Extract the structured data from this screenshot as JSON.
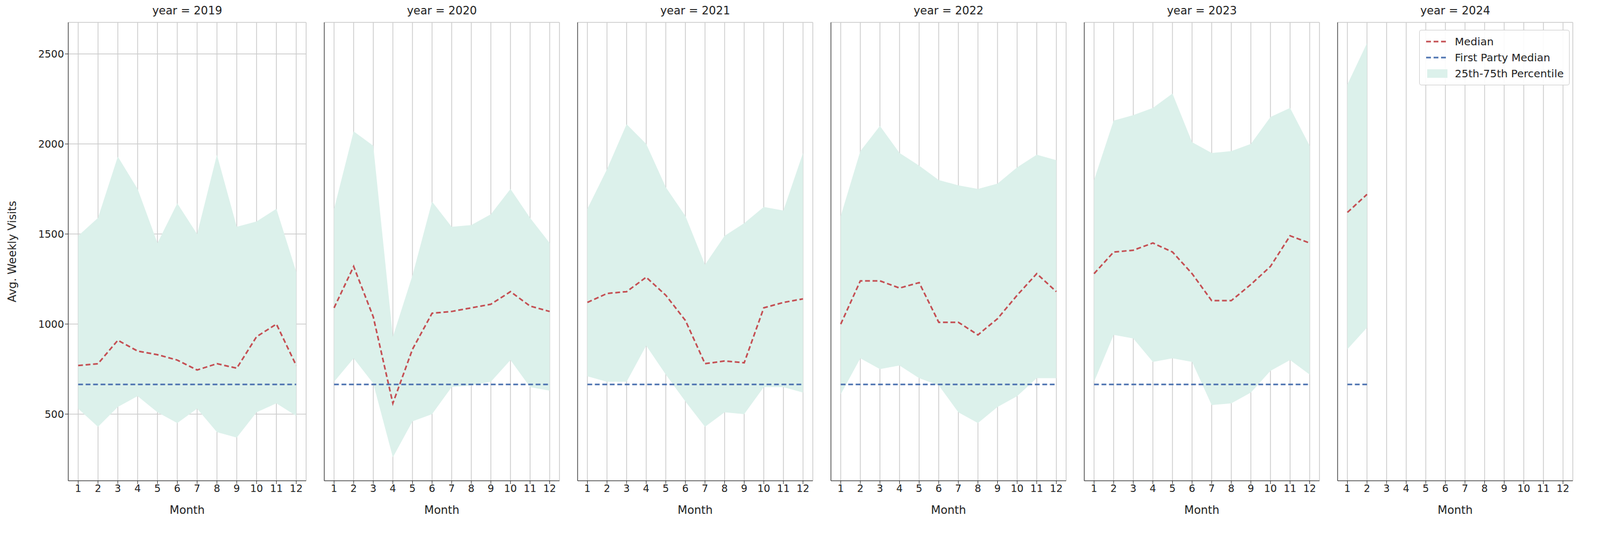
{
  "chart_data": [
    {
      "type": "line",
      "title": "year = 2019",
      "xlabel": "Month",
      "ylabel": "Avg. Weekly Visits",
      "x": [
        1,
        2,
        3,
        4,
        5,
        6,
        7,
        8,
        9,
        10,
        11,
        12
      ],
      "xlim": [
        0.5,
        12.5
      ],
      "xticks": [
        1,
        2,
        3,
        4,
        5,
        6,
        7,
        8,
        9,
        10,
        11,
        12
      ],
      "ylim": [
        130,
        2675
      ],
      "yticks": [
        500,
        1000,
        1500,
        2000,
        2500
      ],
      "grid": true,
      "series": [
        {
          "name": "Median",
          "color": "#c44e52",
          "line_style": "dashed",
          "values": [
            770,
            780,
            910,
            850,
            830,
            800,
            745,
            780,
            755,
            930,
            1000,
            770
          ]
        },
        {
          "name": "First Party Median",
          "color": "#4c72b0",
          "line_style": "dashed",
          "values": [
            665,
            665,
            665,
            665,
            665,
            665,
            665,
            665,
            665,
            665,
            665,
            665
          ]
        },
        {
          "name": "25th-75th Percentile",
          "color": "#dcf1eb",
          "type": "area",
          "low": [
            530,
            430,
            540,
            600,
            510,
            450,
            530,
            400,
            370,
            510,
            560,
            490
          ],
          "high": [
            1490,
            1590,
            1930,
            1750,
            1450,
            1670,
            1500,
            1940,
            1540,
            1570,
            1640,
            1290
          ]
        }
      ]
    },
    {
      "type": "line",
      "title": "year = 2020",
      "xlabel": "Month",
      "tick_labels": "x",
      "x": [
        1,
        2,
        3,
        4,
        5,
        6,
        7,
        8,
        9,
        10,
        11,
        12
      ],
      "xlim": [
        0.5,
        12.5
      ],
      "xticks": [
        1,
        2,
        3,
        4,
        5,
        6,
        7,
        8,
        9,
        10,
        11,
        12
      ],
      "ylim": [
        130,
        2675
      ],
      "yticks": [
        500,
        1000,
        1500,
        2000,
        2500
      ],
      "grid": true,
      "series": [
        {
          "name": "Median",
          "color": "#c44e52",
          "line_style": "dashed",
          "values": [
            1090,
            1320,
            1040,
            560,
            860,
            1060,
            1070,
            1090,
            1110,
            1180,
            1100,
            1070
          ]
        },
        {
          "name": "First Party Median",
          "color": "#4c72b0",
          "line_style": "dashed",
          "values": [
            665,
            665,
            665,
            665,
            665,
            665,
            665,
            665,
            665,
            665,
            665,
            665
          ]
        },
        {
          "name": "25th-75th Percentile",
          "color": "#dcf1eb",
          "type": "area",
          "low": [
            680,
            810,
            670,
            260,
            460,
            500,
            650,
            660,
            680,
            800,
            650,
            630
          ],
          "high": [
            1640,
            2070,
            1990,
            930,
            1270,
            1680,
            1540,
            1550,
            1610,
            1750,
            1590,
            1450
          ]
        }
      ]
    },
    {
      "type": "line",
      "title": "year = 2021",
      "xlabel": "Month",
      "tick_labels": "x",
      "x": [
        1,
        2,
        3,
        4,
        5,
        6,
        7,
        8,
        9,
        10,
        11,
        12
      ],
      "xlim": [
        0.5,
        12.5
      ],
      "xticks": [
        1,
        2,
        3,
        4,
        5,
        6,
        7,
        8,
        9,
        10,
        11,
        12
      ],
      "ylim": [
        130,
        2675
      ],
      "yticks": [
        500,
        1000,
        1500,
        2000,
        2500
      ],
      "grid": true,
      "series": [
        {
          "name": "Median",
          "color": "#c44e52",
          "line_style": "dashed",
          "values": [
            1120,
            1170,
            1180,
            1260,
            1160,
            1020,
            780,
            795,
            785,
            1090,
            1120,
            1140
          ]
        },
        {
          "name": "First Party Median",
          "color": "#4c72b0",
          "line_style": "dashed",
          "values": [
            665,
            665,
            665,
            665,
            665,
            665,
            665,
            665,
            665,
            665,
            665,
            665
          ]
        },
        {
          "name": "25th-75th Percentile",
          "color": "#dcf1eb",
          "type": "area",
          "low": [
            710,
            680,
            680,
            880,
            720,
            570,
            430,
            510,
            500,
            650,
            650,
            620
          ],
          "high": [
            1640,
            1860,
            2110,
            2000,
            1760,
            1600,
            1330,
            1490,
            1560,
            1650,
            1630,
            1950
          ]
        }
      ]
    },
    {
      "type": "line",
      "title": "year = 2022",
      "xlabel": "Month",
      "tick_labels": "x",
      "x": [
        1,
        2,
        3,
        4,
        5,
        6,
        7,
        8,
        9,
        10,
        11,
        12
      ],
      "xlim": [
        0.5,
        12.5
      ],
      "xticks": [
        1,
        2,
        3,
        4,
        5,
        6,
        7,
        8,
        9,
        10,
        11,
        12
      ],
      "ylim": [
        130,
        2675
      ],
      "yticks": [
        500,
        1000,
        1500,
        2000,
        2500
      ],
      "grid": true,
      "series": [
        {
          "name": "Median",
          "color": "#c44e52",
          "line_style": "dashed",
          "values": [
            1000,
            1240,
            1240,
            1200,
            1230,
            1010,
            1010,
            940,
            1030,
            1160,
            1280,
            1180
          ]
        },
        {
          "name": "First Party Median",
          "color": "#4c72b0",
          "line_style": "dashed",
          "values": [
            665,
            665,
            665,
            665,
            665,
            665,
            665,
            665,
            665,
            665,
            665,
            665
          ]
        },
        {
          "name": "25th-75th Percentile",
          "color": "#dcf1eb",
          "type": "area",
          "low": [
            610,
            810,
            750,
            770,
            700,
            660,
            510,
            450,
            540,
            600,
            700,
            700
          ],
          "high": [
            1600,
            1960,
            2100,
            1950,
            1880,
            1800,
            1770,
            1750,
            1780,
            1870,
            1940,
            1910
          ]
        }
      ]
    },
    {
      "type": "line",
      "title": "year = 2023",
      "xlabel": "Month",
      "tick_labels": "x",
      "x": [
        1,
        2,
        3,
        4,
        5,
        6,
        7,
        8,
        9,
        10,
        11,
        12
      ],
      "xlim": [
        0.5,
        12.5
      ],
      "xticks": [
        1,
        2,
        3,
        4,
        5,
        6,
        7,
        8,
        9,
        10,
        11,
        12
      ],
      "ylim": [
        130,
        2675
      ],
      "yticks": [
        500,
        1000,
        1500,
        2000,
        2500
      ],
      "grid": true,
      "series": [
        {
          "name": "Median",
          "color": "#c44e52",
          "line_style": "dashed",
          "values": [
            1280,
            1400,
            1410,
            1450,
            1400,
            1280,
            1130,
            1130,
            1220,
            1320,
            1490,
            1450
          ]
        },
        {
          "name": "First Party Median",
          "color": "#4c72b0",
          "line_style": "dashed",
          "values": [
            665,
            665,
            665,
            665,
            665,
            665,
            665,
            665,
            665,
            665,
            665,
            665
          ]
        },
        {
          "name": "25th-75th Percentile",
          "color": "#dcf1eb",
          "type": "area",
          "low": [
            680,
            940,
            920,
            790,
            810,
            790,
            550,
            560,
            620,
            740,
            800,
            720
          ],
          "high": [
            1800,
            2130,
            2160,
            2200,
            2280,
            2010,
            1950,
            1960,
            2000,
            2150,
            2200,
            1990
          ]
        }
      ]
    },
    {
      "type": "line",
      "title": "year = 2024",
      "xlabel": "Month",
      "tick_labels": "x",
      "legend": "upper right",
      "x": [
        1,
        2,
        3,
        4,
        5,
        6,
        7,
        8,
        9,
        10,
        11,
        12
      ],
      "xlim": [
        0.5,
        12.5
      ],
      "xticks": [
        1,
        2,
        3,
        4,
        5,
        6,
        7,
        8,
        9,
        10,
        11,
        12
      ],
      "ylim": [
        130,
        2675
      ],
      "yticks": [
        500,
        1000,
        1500,
        2000,
        2500
      ],
      "grid": true,
      "series": [
        {
          "name": "Median",
          "color": "#c44e52",
          "line_style": "dashed",
          "values": [
            1620,
            1720,
            null,
            null,
            null,
            null,
            null,
            null,
            null,
            null,
            null,
            null
          ]
        },
        {
          "name": "First Party Median",
          "color": "#4c72b0",
          "line_style": "dashed",
          "values": [
            665,
            665,
            null,
            null,
            null,
            null,
            null,
            null,
            null,
            null,
            null,
            null
          ]
        },
        {
          "name": "25th-75th Percentile",
          "color": "#dcf1eb",
          "type": "area",
          "low": [
            860,
            980,
            null,
            null,
            null,
            null,
            null,
            null,
            null,
            null,
            null,
            null
          ],
          "high": [
            2330,
            2560,
            null,
            null,
            null,
            null,
            null,
            null,
            null,
            null,
            null,
            null
          ]
        }
      ]
    }
  ]
}
